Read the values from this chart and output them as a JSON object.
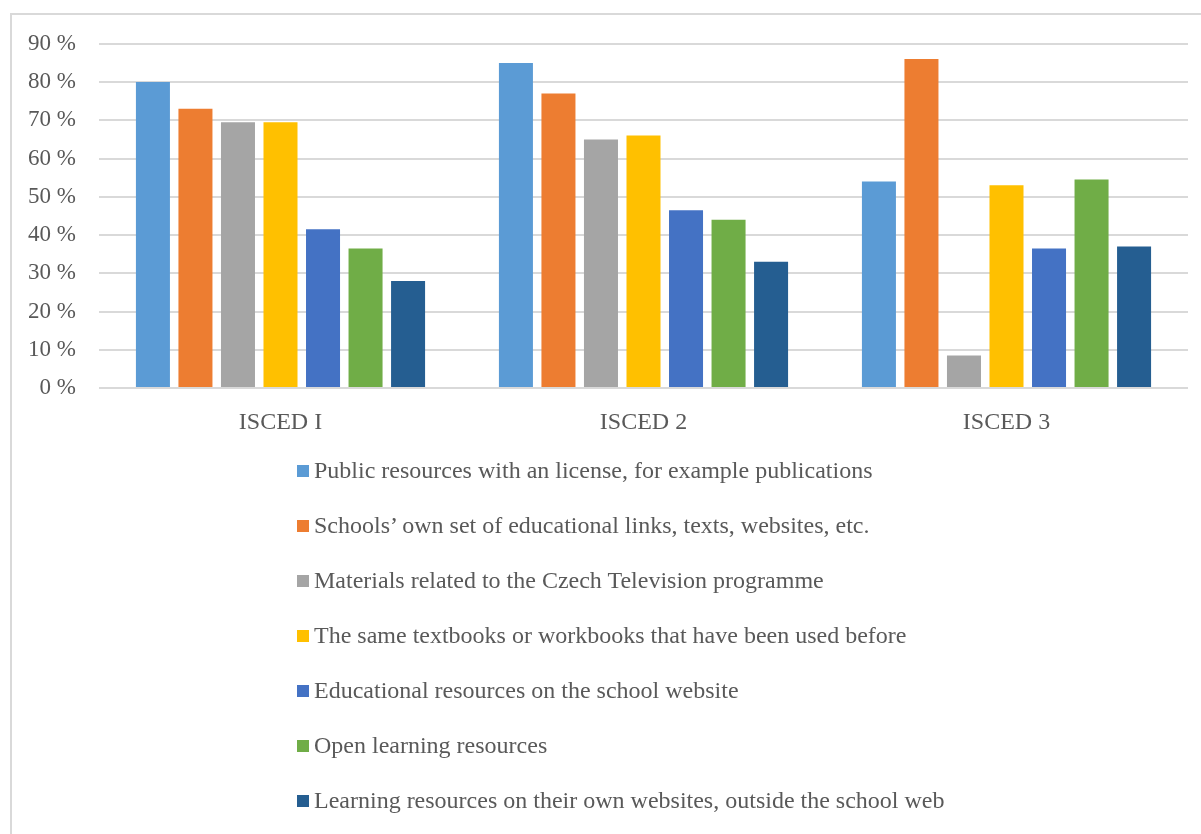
{
  "chart_data": {
    "type": "bar",
    "categories": [
      "ISCED I",
      "ISCED 2",
      "ISCED 3"
    ],
    "series": [
      {
        "name": "Public resources with an license, for example publications",
        "color": "#5b9bd5",
        "values": [
          80,
          85,
          54
        ]
      },
      {
        "name": "Schools’ own set of educational links, texts, websites, etc.",
        "color": "#ed7d31",
        "values": [
          73,
          77,
          86
        ]
      },
      {
        "name": "Materials related to the Czech Television programme",
        "color": "#a5a5a5",
        "values": [
          69.5,
          65,
          8.5
        ]
      },
      {
        "name": "The same textbooks or workbooks that have been used before",
        "color": "#ffc000",
        "values": [
          69.5,
          66,
          53
        ]
      },
      {
        "name": "Educational resources on the school website",
        "color": "#4472c4",
        "values": [
          41.5,
          46.5,
          36.5
        ]
      },
      {
        "name": "Open learning resources",
        "color": "#70ad47",
        "values": [
          36.5,
          44,
          54.5
        ]
      },
      {
        "name": "Learning resources on their own websites, outside the school web",
        "color": "#255e91",
        "values": [
          28,
          33,
          37
        ]
      }
    ],
    "ylim": [
      0,
      90
    ],
    "yticks": [
      {
        "value": 0,
        "label": "0 %"
      },
      {
        "value": 10,
        "label": "10 %"
      },
      {
        "value": 20,
        "label": "20 %"
      },
      {
        "value": 30,
        "label": "30 %"
      },
      {
        "value": 40,
        "label": "40 %"
      },
      {
        "value": 50,
        "label": "50 %"
      },
      {
        "value": 60,
        "label": "60 %"
      },
      {
        "value": 70,
        "label": "70 %"
      },
      {
        "value": 80,
        "label": "80 %"
      },
      {
        "value": 90,
        "label": "90 %"
      }
    ],
    "grid": "y",
    "legend": "bottom"
  }
}
